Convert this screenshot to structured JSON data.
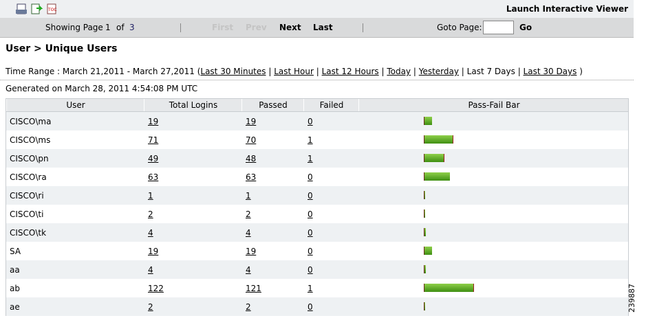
{
  "toolbar": {
    "launch": "Launch Interactive Viewer"
  },
  "pager": {
    "showing": "Showing Page",
    "page": "1",
    "of": "of",
    "total": "3",
    "first": "First",
    "prev": "Prev",
    "next": "Next",
    "last": "Last",
    "goto": "Goto Page:",
    "go": "Go"
  },
  "title": "User > Unique Users",
  "time_range": {
    "label": "Time Range : March 21,2011 - March 27,2011 (",
    "options": [
      "Last 30 Minutes",
      "Last Hour",
      "Last 12 Hours",
      "Today",
      "Yesterday",
      "Last 7 Days",
      "Last 30 Days"
    ],
    "current": "Last 7 Days",
    "close": ")"
  },
  "generated": "Generated on March 28, 2011 4:54:08 PM UTC",
  "table": {
    "columns": [
      "User",
      "Total Logins",
      "Passed",
      "Failed",
      "Pass-Fail Bar"
    ],
    "rows": [
      [
        "CISCO\\ma",
        19,
        19,
        0
      ],
      [
        "CISCO\\ms",
        71,
        70,
        1
      ],
      [
        "CISCO\\pn",
        49,
        48,
        1
      ],
      [
        "CISCO\\ra",
        63,
        63,
        0
      ],
      [
        "CISCO\\ri",
        1,
        1,
        0
      ],
      [
        "CISCO\\ti",
        2,
        2,
        0
      ],
      [
        "CISCO\\tk",
        4,
        4,
        0
      ],
      [
        "SA",
        19,
        19,
        0
      ],
      [
        "aa",
        4,
        4,
        0
      ],
      [
        "ab",
        122,
        121,
        1
      ],
      [
        "ae",
        2,
        2,
        0
      ]
    ]
  },
  "figure_id": "239887"
}
